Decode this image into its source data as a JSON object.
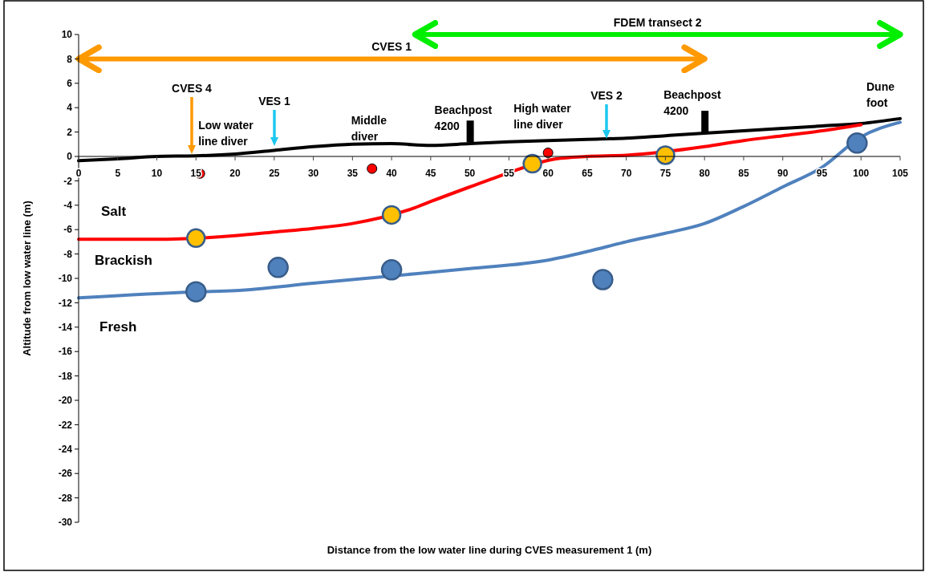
{
  "chart_data": {
    "type": "line",
    "xlabel": "Distance from the low water line during CVES measurement 1 (m)",
    "ylabel": "Altitude from low water line (m)",
    "xlim": [
      0,
      105
    ],
    "xticks": [
      0,
      5,
      10,
      15,
      20,
      25,
      30,
      35,
      40,
      45,
      50,
      55,
      60,
      65,
      70,
      75,
      80,
      85,
      90,
      95,
      100,
      105
    ],
    "ylim": [
      -30,
      10
    ],
    "yticks": [
      -30,
      -28,
      -26,
      -24,
      -22,
      -20,
      -18,
      -16,
      -14,
      -12,
      -10,
      -8,
      -6,
      -4,
      -2,
      0,
      2,
      4,
      6,
      8,
      10
    ],
    "grid": false,
    "series": [
      {
        "color": "#000000",
        "marker": "none",
        "x": [
          0,
          5,
          10,
          15,
          20,
          25,
          30,
          35,
          40,
          45,
          50,
          55,
          60,
          65,
          70,
          75,
          80,
          85,
          90,
          95,
          100,
          105
        ],
        "values": [
          -0.35,
          -0.2,
          0,
          0.05,
          0.2,
          0.5,
          0.8,
          1.0,
          1.05,
          0.9,
          1.05,
          1.2,
          1.3,
          1.4,
          1.5,
          1.7,
          1.9,
          2.1,
          2.3,
          2.5,
          2.7,
          3.1
        ]
      },
      {
        "color": "#ff0000",
        "marker": "none",
        "x": [
          0,
          10,
          20,
          25,
          30,
          35,
          43,
          45,
          50,
          53,
          61,
          65,
          70,
          80,
          85,
          90,
          95,
          100
        ],
        "values": [
          -6.8,
          -6.8,
          -6.5,
          -6.2,
          -5.9,
          -5.5,
          -4.2,
          -3.7,
          -2.5,
          -1.8,
          -0.2,
          0,
          0.1,
          0.8,
          1.3,
          1.7,
          2.1,
          2.6
        ]
      },
      {
        "color": "#4f81bd",
        "marker": "none",
        "x": [
          0,
          15,
          20,
          30,
          40,
          50,
          60,
          65,
          70,
          75,
          80,
          85,
          90,
          95,
          100,
          105
        ],
        "values": [
          -11.6,
          -11.1,
          -11.0,
          -10.4,
          -9.8,
          -9.2,
          -8.5,
          -7.8,
          -7.0,
          -6.3,
          -5.5,
          -4.1,
          -2.5,
          -0.9,
          1.6,
          2.8
        ]
      },
      {
        "type": "scatter",
        "color": "#ffc000",
        "marker": "circle",
        "x": [
          15,
          40,
          58,
          75
        ],
        "values": [
          -6.7,
          -4.8,
          -0.6,
          0.1
        ]
      },
      {
        "type": "scatter",
        "color": "#4f81bd",
        "marker": "circle",
        "x": [
          15,
          25.5,
          40,
          67,
          99.5
        ],
        "values": [
          -11.1,
          -9.1,
          -9.3,
          -10.1,
          1.1
        ]
      },
      {
        "type": "scatter",
        "color": "#ff0000",
        "marker": "circle",
        "x": [
          15.5,
          37.5,
          60
        ],
        "values": [
          -1.4,
          -1.0,
          0.3
        ]
      },
      {
        "type": "line",
        "name": "CVES 1",
        "color": "#ff9900",
        "marker": "none",
        "x": [
          0,
          80
        ],
        "values": [
          8,
          8
        ]
      },
      {
        "type": "line",
        "name": "FDEM transect 2",
        "color": "#00ee00",
        "marker": "none",
        "x": [
          43,
          105
        ],
        "values": [
          10,
          10
        ]
      }
    ],
    "annotations": [
      "CVES 4",
      "VES 1",
      "VES 2",
      {
        "text": "Low water line diver",
        "x": 15.5,
        "y": -1.4
      },
      {
        "text": "Middle diver",
        "x": 37.5,
        "y": -1.0
      },
      {
        "text": "High water line diver",
        "x": 60,
        "y": 0.3
      },
      {
        "text": "Beachpost 4200",
        "x": 50,
        "y": 1.1
      },
      {
        "text": "Beachpost 4200",
        "x": 80,
        "y": 1.9
      },
      {
        "text": "Dune foot",
        "x": 105,
        "y": 3.1
      },
      "Salt",
      "Brackish",
      "Fresh"
    ]
  }
}
